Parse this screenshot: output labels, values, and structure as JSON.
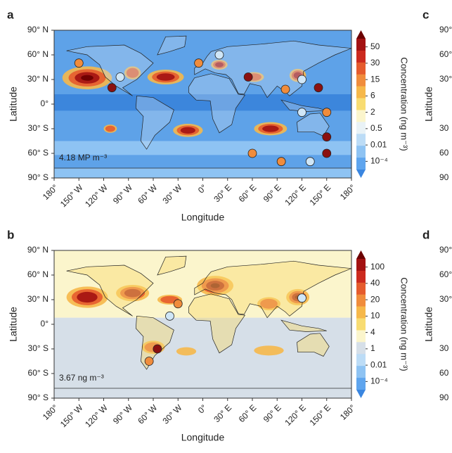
{
  "chart_data": [
    {
      "type": "map",
      "label": "a",
      "annotation": "4.18 MP m⁻³",
      "xlabel": "Longitude",
      "ylabel": "Latitude",
      "xlim": [
        -180,
        180
      ],
      "ylim": [
        -90,
        90
      ],
      "xticks": [
        {
          "value": -180,
          "label": "180°"
        },
        {
          "value": -150,
          "label": "150° W"
        },
        {
          "value": -120,
          "label": "120° W"
        },
        {
          "value": -90,
          "label": "90° W"
        },
        {
          "value": -60,
          "label": "60° W"
        },
        {
          "value": -30,
          "label": "30° W"
        },
        {
          "value": 0,
          "label": "0°"
        },
        {
          "value": 30,
          "label": "30° E"
        },
        {
          "value": 60,
          "label": "60° E"
        },
        {
          "value": 90,
          "label": "90° E"
        },
        {
          "value": 120,
          "label": "120° E"
        },
        {
          "value": 150,
          "label": "150° E"
        },
        {
          "value": 180,
          "label": "180°"
        }
      ],
      "yticks": [
        {
          "value": 90,
          "label": "90° N"
        },
        {
          "value": 60,
          "label": "60° N"
        },
        {
          "value": 30,
          "label": "30° N"
        },
        {
          "value": 0,
          "label": "0°"
        },
        {
          "value": -30,
          "label": "30° S"
        },
        {
          "value": -60,
          "label": "60° S"
        },
        {
          "value": -90,
          "label": "90° S"
        }
      ],
      "colorbar": {
        "label": "Concentration (ng m⁻³)",
        "ticks": [
          50,
          30,
          15,
          6,
          2,
          0.5,
          0.01,
          {
            "value": 0.0001,
            "label": "10⁻⁴"
          }
        ],
        "colors": [
          "#6b0000",
          "#a31212",
          "#cc2a1e",
          "#e55b2d",
          "#f08c3c",
          "#f6b84a",
          "#f8dc72",
          "#fbf5cc",
          "#e9f2f6",
          "#bcdcf6",
          "#8ec3f3",
          "#5fa5ee",
          "#3a86e0"
        ]
      }
    },
    {
      "type": "map",
      "label": "b",
      "annotation": "3.67 ng m⁻³",
      "xlabel": "Longitude",
      "ylabel": "Latitude",
      "xlim": [
        -180,
        180
      ],
      "ylim": [
        -90,
        90
      ],
      "xticks": [
        {
          "value": -180,
          "label": "180°"
        },
        {
          "value": -150,
          "label": "150° W"
        },
        {
          "value": -120,
          "label": "120° W"
        },
        {
          "value": -90,
          "label": "90° W"
        },
        {
          "value": -60,
          "label": "60° W"
        },
        {
          "value": -30,
          "label": "30° W"
        },
        {
          "value": 0,
          "label": "0°"
        },
        {
          "value": 30,
          "label": "30° E"
        },
        {
          "value": 60,
          "label": "60° E"
        },
        {
          "value": 90,
          "label": "90° E"
        },
        {
          "value": 120,
          "label": "120° E"
        },
        {
          "value": 150,
          "label": "150° E"
        },
        {
          "value": 180,
          "label": "180°"
        }
      ],
      "yticks": [
        {
          "value": 90,
          "label": "90° N"
        },
        {
          "value": 60,
          "label": "60° N"
        },
        {
          "value": 30,
          "label": "30° N"
        },
        {
          "value": 0,
          "label": "0°"
        },
        {
          "value": -30,
          "label": "30° S"
        },
        {
          "value": -60,
          "label": "60° S"
        },
        {
          "value": -90,
          "label": "90° S"
        }
      ],
      "colorbar": {
        "label": "Concentration (ng m⁻³)",
        "ticks": [
          100,
          40,
          20,
          10,
          4,
          1,
          0.01,
          {
            "value": 0.0001,
            "label": "10⁻⁴"
          }
        ],
        "colors": [
          "#6b0000",
          "#a31212",
          "#cc2a1e",
          "#e55b2d",
          "#f08c3c",
          "#f6b84a",
          "#f8dc72",
          "#fbf5cc",
          "#d6dfe8",
          "#bcdcf6",
          "#8ec3f3",
          "#5fa5ee",
          "#3a86e0"
        ]
      }
    }
  ],
  "partial_panels": [
    {
      "label": "c",
      "ylabel": "Latitude",
      "ytick_labels": [
        "90°",
        "60°",
        "30°",
        "30",
        "60",
        "90"
      ]
    },
    {
      "label": "d",
      "ylabel": "Latitude",
      "ytick_labels": [
        "90°",
        "60°",
        "30°",
        "30",
        "60",
        "90"
      ]
    }
  ]
}
